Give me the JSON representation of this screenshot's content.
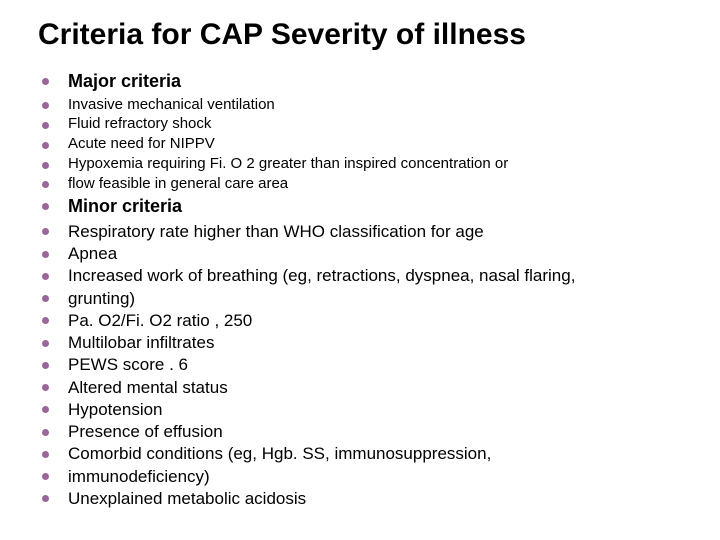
{
  "title": "Criteria for CAP Severity of illness",
  "items": [
    {
      "text": "Major criteria",
      "style": "li-strong"
    },
    {
      "text": "Invasive mechanical ventilation",
      "style": "li-small"
    },
    {
      "text": "Fluid refractory shock",
      "style": "li-small"
    },
    {
      "text": "Acute need for NIPPV",
      "style": "li-small"
    },
    {
      "text": "Hypoxemia requiring Fi. O 2 greater than inspired concentration or",
      "style": "li-small"
    },
    {
      "text": "flow feasible in general care area",
      "style": "li-small"
    },
    {
      "text": "Minor criteria",
      "style": "li-strong"
    },
    {
      "text": "Respiratory rate higher than WHO classification for age",
      "style": "li-medium"
    },
    {
      "text": "Apnea",
      "style": "li-medium"
    },
    {
      "text": "Increased work of breathing (eg, retractions, dyspnea, nasal flaring,",
      "style": "li-medium"
    },
    {
      "text": "grunting)",
      "style": "li-medium"
    },
    {
      "text": "Pa. O2/Fi. O2 ratio , 250",
      "style": "li-medium"
    },
    {
      "text": "Multilobar infiltrates",
      "style": "li-medium"
    },
    {
      "text": "PEWS score . 6",
      "style": "li-medium"
    },
    {
      "text": "Altered mental status",
      "style": "li-medium"
    },
    {
      "text": "Hypotension",
      "style": "li-medium"
    },
    {
      "text": "Presence of effusion",
      "style": "li-medium"
    },
    {
      "text": "Comorbid conditions (eg, Hgb. SS, immunosuppression,",
      "style": "li-medium"
    },
    {
      "text": "immunodeficiency)",
      "style": "li-medium"
    },
    {
      "text": "Unexplained metabolic acidosis",
      "style": "li-medium"
    }
  ],
  "colors": {
    "bullet": "#9a669a",
    "text": "#000000",
    "background": "#ffffff"
  }
}
